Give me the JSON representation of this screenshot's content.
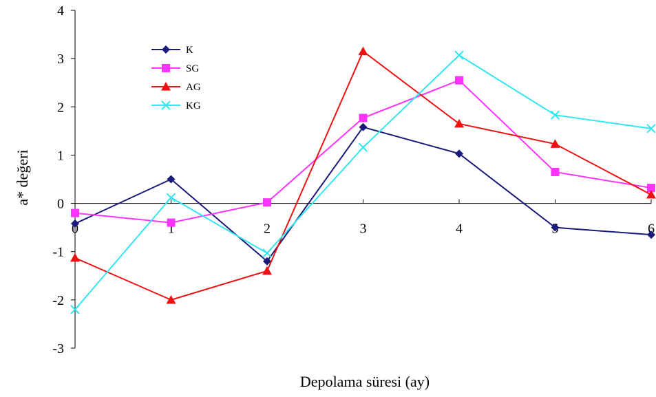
{
  "chart_data": {
    "type": "line",
    "title": "",
    "xlabel": "Depolama süresi (ay)",
    "ylabel": "a* değeri",
    "x": [
      0,
      1,
      2,
      3,
      4,
      5,
      6
    ],
    "xlim": [
      0,
      6
    ],
    "ylim": [
      -3,
      4
    ],
    "x_ticks": [
      "0",
      "1",
      "2",
      "3",
      "4",
      "5",
      "6"
    ],
    "y_ticks": [
      "-3",
      "-2",
      "-1",
      "0",
      "1",
      "2",
      "3",
      "4"
    ],
    "grid": false,
    "legend_position": "top-left",
    "series": [
      {
        "name": "K",
        "color": "#1a1a7a",
        "marker": "diamond",
        "values": [
          -0.42,
          0.5,
          -1.2,
          1.58,
          1.03,
          -0.5,
          -0.65
        ]
      },
      {
        "name": "SG",
        "color": "#ff33ff",
        "marker": "square",
        "values": [
          -0.2,
          -0.4,
          0.02,
          1.77,
          2.55,
          0.65,
          0.32
        ]
      },
      {
        "name": "AG",
        "color": "#ee1111",
        "marker": "triangle",
        "values": [
          -1.13,
          -2.0,
          -1.4,
          3.15,
          1.65,
          1.23,
          0.18
        ]
      },
      {
        "name": "KG",
        "color": "#33e6f0",
        "marker": "x",
        "values": [
          -2.2,
          0.12,
          -1.03,
          1.16,
          3.07,
          1.83,
          1.55
        ]
      }
    ]
  }
}
